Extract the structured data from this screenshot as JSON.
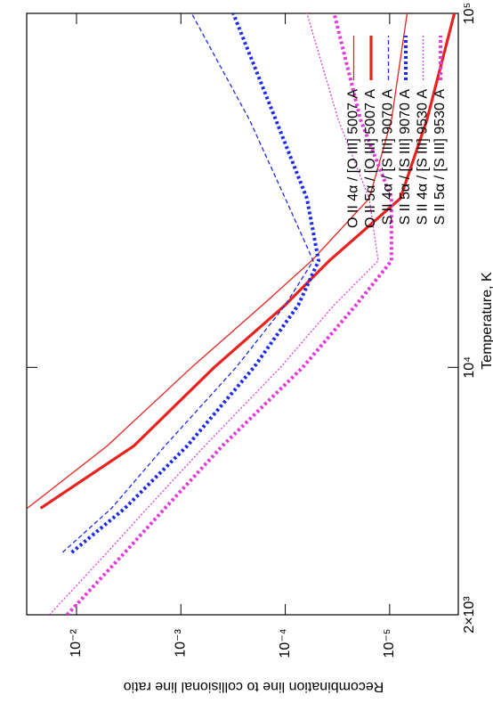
{
  "chart_data": {
    "type": "line",
    "xlabel": "Temperature, K",
    "ylabel": "Recombination line to collisional line ratio",
    "xscale": "log",
    "yscale": "log",
    "xlim": [
      2000,
      100000
    ],
    "ylim": [
      2.2e-06,
      0.03
    ],
    "xticks": [
      {
        "value": 2000,
        "label": "2×10³"
      },
      {
        "value": 10000,
        "label": "10⁴"
      },
      {
        "value": 100000,
        "label": "10⁵"
      }
    ],
    "yticks": [
      {
        "value": 0.01,
        "label": "10⁻²"
      },
      {
        "value": 0.001,
        "label": "10⁻³"
      },
      {
        "value": 0.0001,
        "label": "10⁻⁴"
      },
      {
        "value": 1e-05,
        "label": "10⁻⁵"
      }
    ],
    "legend": "top-right",
    "x": [
      2000,
      3000,
      4000,
      6000,
      10000,
      15000,
      20000,
      30000,
      50000,
      100000
    ],
    "series": [
      {
        "name": "O II 4α / [O III] 5007 A",
        "color": "#e8231f",
        "linewidth": 1.3,
        "dash": "solid",
        "values": [
          null,
          null,
          0.0296,
          0.00508,
          0.00079,
          0.000165,
          5.6e-05,
          1.57e-05,
          9.6e-06,
          6.8e-06
        ]
      },
      {
        "name": "O II 5α / [O III] 5007 A",
        "color": "#e8231f",
        "linewidth": 3.2,
        "dash": "solid",
        "values": [
          null,
          null,
          0.0221,
          0.00282,
          0.00048,
          0.0001,
          3.8e-05,
          7.9e-06,
          4.4e-06,
          2.4e-06
        ]
      },
      {
        "name": "S II 4α / [S III] 9070 A",
        "color": "#1f2be8",
        "linewidth": 1.3,
        "dash": "dashed",
        "values": [
          null,
          0.0136,
          0.00461,
          0.00142,
          0.000296,
          0.0001,
          5.4e-05,
          0.0001,
          0.00022,
          0.00079
        ]
      },
      {
        "name": "S II 5α / [S III] 9070 A",
        "color": "#1f2be8",
        "linewidth": 4,
        "dash": "dotted",
        "values": [
          null,
          0.0111,
          0.00344,
          0.00087,
          0.0002,
          7.5e-05,
          4.8e-05,
          6.2e-05,
          0.000123,
          0.000315
        ]
      },
      {
        "name": "S II 4α / [S III] 9530 A",
        "color": "#e03ad8",
        "linewidth": 1.3,
        "dash": "dotted",
        "values": [
          0.0182,
          0.00508,
          0.0021,
          0.00059,
          0.000111,
          3.4e-05,
          1.29e-05,
          1.57e-05,
          3.1e-05,
          6.2e-05
        ]
      },
      {
        "name": "S II 5α / [S III] 9530 A",
        "color": "#e03ad8",
        "linewidth": 4,
        "dash": "dotted",
        "values": [
          0.0123,
          0.00344,
          0.00142,
          0.0004,
          6.8e-05,
          2.1e-05,
          9.6e-06,
          9.6e-06,
          1.9e-05,
          3.4e-05
        ]
      }
    ]
  }
}
